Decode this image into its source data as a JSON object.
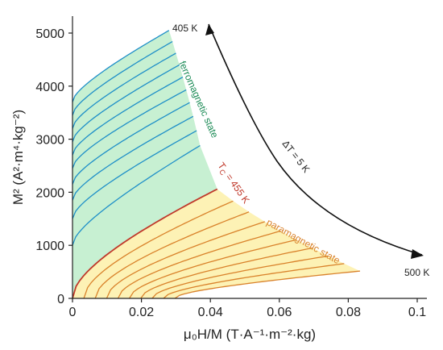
{
  "chart_data": {
    "type": "line",
    "title": "",
    "xlabel": "μ₀H/M (T·A⁻¹·m⁻²·kg)",
    "ylabel": "M² (A²·m⁴·kg⁻²)",
    "xlim": [
      0,
      0.1
    ],
    "ylim": [
      0,
      5000
    ],
    "x_ticks": [
      "0",
      "0.02",
      "0.04",
      "0.06",
      "0.08",
      "0.1"
    ],
    "y_ticks": [
      "0",
      "1000",
      "2000",
      "3000",
      "4000",
      "5000"
    ],
    "colors": {
      "ferro_line": "#1e8fc8",
      "ferro_fill": "#c7f0d2",
      "para_line": "#d9822b",
      "para_fill": "#fdf2b5",
      "tc_line": "#c0392b",
      "arrow": "#111111"
    },
    "series_rule": "Arrott isotherms from 405 K to 500 K in steps of 5 K; each isotherm starts at the low-field point and ends on the high-field envelope",
    "isotherms": [
      {
        "T": 405,
        "x0": 0.0,
        "y0": 3700,
        "x1": 0.028,
        "y1": 5050
      },
      {
        "T": 410,
        "x0": 0.0,
        "y0": 3450,
        "x1": 0.029,
        "y1": 4840
      },
      {
        "T": 415,
        "x0": 0.0,
        "y0": 3200,
        "x1": 0.03,
        "y1": 4620
      },
      {
        "T": 420,
        "x0": 0.0,
        "y0": 2950,
        "x1": 0.031,
        "y1": 4400
      },
      {
        "T": 425,
        "x0": 0.0,
        "y0": 2700,
        "x1": 0.032,
        "y1": 4170
      },
      {
        "T": 430,
        "x0": 0.0,
        "y0": 2450,
        "x1": 0.033,
        "y1": 3930
      },
      {
        "T": 435,
        "x0": 0.0,
        "y0": 2150,
        "x1": 0.034,
        "y1": 3690
      },
      {
        "T": 440,
        "x0": 0.0,
        "y0": 1850,
        "x1": 0.035,
        "y1": 3430
      },
      {
        "T": 445,
        "x0": 0.0,
        "y0": 1500,
        "x1": 0.036,
        "y1": 3160
      },
      {
        "T": 450,
        "x0": 0.0,
        "y0": 1000,
        "x1": 0.037,
        "y1": 2880
      },
      {
        "T": 455,
        "x0": 0.0,
        "y0": 0,
        "x1": 0.042,
        "y1": 2060
      },
      {
        "T": 460,
        "x0": 0.0033,
        "y0": 0,
        "x1": 0.0466,
        "y1": 1835
      },
      {
        "T": 465,
        "x0": 0.0066,
        "y0": 0,
        "x1": 0.0512,
        "y1": 1630
      },
      {
        "T": 470,
        "x0": 0.0099,
        "y0": 0,
        "x1": 0.0558,
        "y1": 1445
      },
      {
        "T": 475,
        "x0": 0.0132,
        "y0": 0,
        "x1": 0.0604,
        "y1": 1270
      },
      {
        "T": 480,
        "x0": 0.0165,
        "y0": 0,
        "x1": 0.065,
        "y1": 1105
      },
      {
        "T": 485,
        "x0": 0.0198,
        "y0": 0,
        "x1": 0.0696,
        "y1": 950
      },
      {
        "T": 490,
        "x0": 0.0231,
        "y0": 0,
        "x1": 0.0742,
        "y1": 800
      },
      {
        "T": 495,
        "x0": 0.0264,
        "y0": 0,
        "x1": 0.0788,
        "y1": 655
      },
      {
        "T": 500,
        "x0": 0.0297,
        "y0": 0,
        "x1": 0.0834,
        "y1": 515
      }
    ],
    "annotations": {
      "label_405": "405 K",
      "label_500": "500 K",
      "delta_t": "ΔT = 5 K",
      "ferro": "ferromagnetic state",
      "para": "paramagnetic state",
      "tc": "T",
      "tc_sub": "C",
      "tc_value": " = 455 K"
    }
  }
}
